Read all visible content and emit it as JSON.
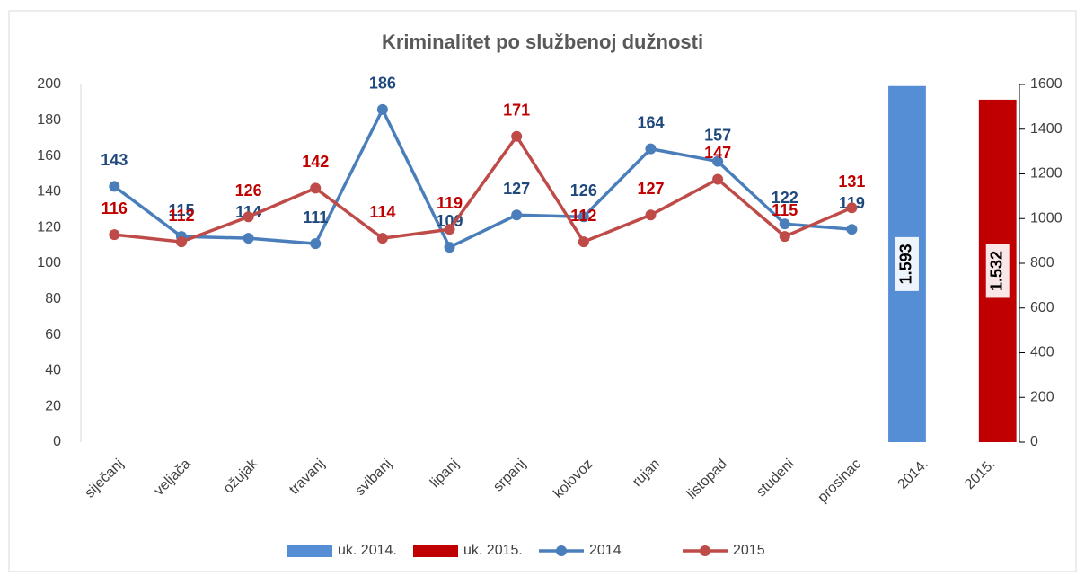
{
  "chart_data": {
    "type": "combo",
    "title": "Kriminalitet po službenoj dužnosti",
    "categories": [
      "siječanj",
      "veljača",
      "ožujak",
      "travanj",
      "svibanj",
      "lipanj",
      "srpanj",
      "kolovoz",
      "rujan",
      "listopad",
      "studeni",
      "prosinac",
      "2014.",
      "2015."
    ],
    "series": [
      {
        "name": "uk. 2014.",
        "type": "bar",
        "axis": "y2",
        "color": "#558ed5",
        "values": [
          null,
          null,
          null,
          null,
          null,
          null,
          null,
          null,
          null,
          null,
          null,
          null,
          1593,
          null
        ],
        "value_labels": [
          null,
          null,
          null,
          null,
          null,
          null,
          null,
          null,
          null,
          null,
          null,
          null,
          "1.593",
          null
        ]
      },
      {
        "name": "uk. 2015.",
        "type": "bar",
        "axis": "y2",
        "color": "#c00000",
        "values": [
          null,
          null,
          null,
          null,
          null,
          null,
          null,
          null,
          null,
          null,
          null,
          null,
          null,
          1532
        ],
        "value_labels": [
          null,
          null,
          null,
          null,
          null,
          null,
          null,
          null,
          null,
          null,
          null,
          null,
          null,
          "1.532"
        ]
      },
      {
        "name": "2014",
        "type": "line",
        "color": "#4a7ebb",
        "label_color": "#1f497d",
        "values": [
          143,
          115,
          114,
          111,
          186,
          109,
          127,
          126,
          164,
          157,
          122,
          119,
          null,
          null
        ]
      },
      {
        "name": "2015",
        "type": "line",
        "color": "#be4b48",
        "label_color": "#c00000",
        "values": [
          116,
          112,
          126,
          142,
          114,
          119,
          171,
          112,
          127,
          147,
          115,
          131,
          null,
          null
        ]
      }
    ],
    "ylim": [
      0,
      200
    ],
    "yticks": [
      0,
      20,
      40,
      60,
      80,
      100,
      120,
      140,
      160,
      180,
      200
    ],
    "y2lim": [
      0,
      1600
    ],
    "y2ticks": [
      0,
      200,
      400,
      600,
      800,
      1000,
      1200,
      1400,
      1600
    ],
    "grid": false,
    "legend": "bottom"
  }
}
